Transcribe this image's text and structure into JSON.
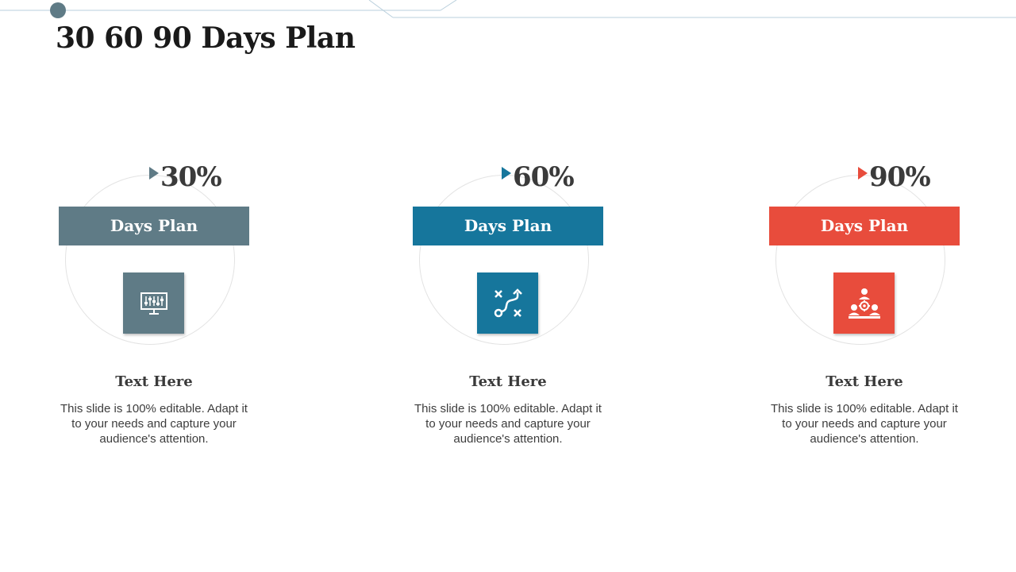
{
  "slide": {
    "title": "30 60 90 Days Plan"
  },
  "cards": [
    {
      "percent": "30%",
      "banner": "Days Plan",
      "heading": "Text Here",
      "body": "This slide is 100% editable. Adapt it to your needs and capture your audience's attention.",
      "color": "#5f7b86",
      "icon": "presentation-board-icon"
    },
    {
      "percent": "60%",
      "banner": "Days Plan",
      "heading": "Text Here",
      "body": "This slide is 100% editable. Adapt it to your needs and capture your audience's attention.",
      "color": "#16769c",
      "icon": "strategy-path-icon"
    },
    {
      "percent": "90%",
      "banner": "Days Plan",
      "heading": "Text Here",
      "body": "This slide is 100% editable. Adapt it to your needs and capture your audience's attention.",
      "color": "#e84c3c",
      "icon": "team-network-icon"
    }
  ],
  "colors": {
    "deco_line": "#b9cfdc",
    "deco_dot": "#5f7b86"
  }
}
